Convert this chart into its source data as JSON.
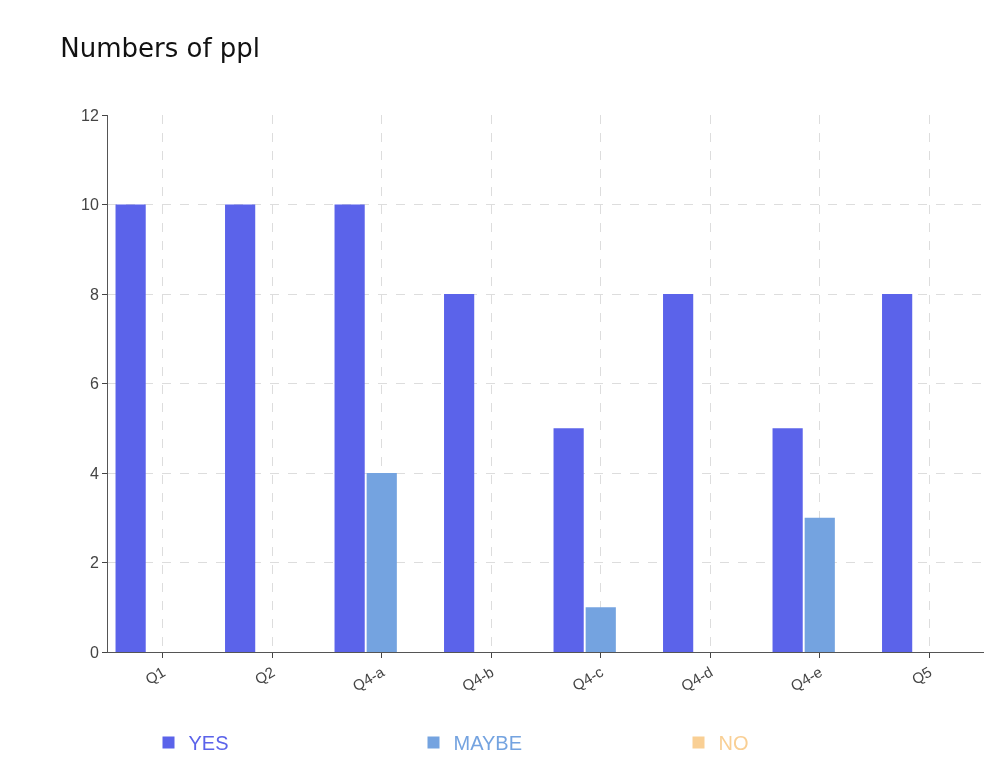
{
  "chart_data": {
    "type": "bar",
    "title": "Numbers of ppl",
    "categories": [
      "Q1",
      "Q2",
      "Q4-a",
      "Q4-b",
      "Q4-c",
      "Q4-d",
      "Q4-e",
      "Q5"
    ],
    "series": [
      {
        "name": "YES",
        "color": "#5b63ea",
        "values": [
          10,
          10,
          10,
          8,
          5,
          8,
          5,
          8
        ]
      },
      {
        "name": "MAYBE",
        "color": "#74a3e0",
        "values": [
          0,
          0,
          4,
          0,
          1,
          0,
          3,
          0
        ]
      },
      {
        "name": "NO",
        "color": "#f9cf94",
        "values": [
          0,
          0,
          0,
          0,
          0,
          0,
          0,
          0
        ]
      }
    ],
    "ylim": [
      0,
      12
    ],
    "yticks": [
      0,
      2,
      4,
      6,
      8,
      10,
      12
    ],
    "grid": true,
    "legend": "bottom"
  }
}
